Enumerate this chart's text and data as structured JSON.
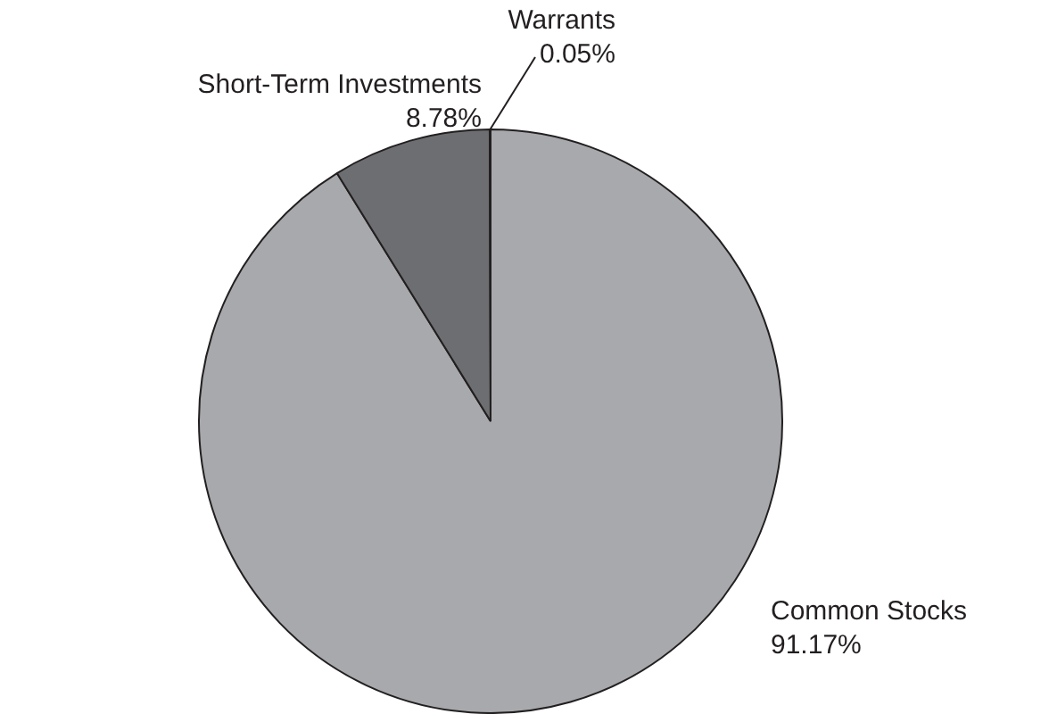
{
  "chart_data": {
    "type": "pie",
    "categories": [
      "Common Stocks",
      "Short-Term Investments",
      "Warrants"
    ],
    "values": [
      91.17,
      8.78,
      0.05
    ],
    "value_labels": [
      "91.17%",
      "8.78%",
      "0.05%"
    ],
    "colors": [
      "#a7a9ac",
      "#6d6e71",
      "#58595b"
    ],
    "legend": false
  }
}
